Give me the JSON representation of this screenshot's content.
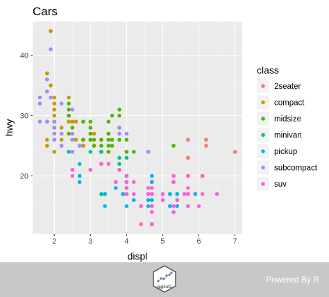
{
  "chart_data": {
    "type": "scatter",
    "title": "Cars",
    "xlabel": "displ",
    "ylabel": "hwy",
    "xlim": [
      1.4,
      7.2
    ],
    "ylim": [
      10.4,
      45.6
    ],
    "xticks": [
      2,
      3,
      4,
      5,
      6,
      7
    ],
    "yticks": [
      20,
      30,
      40
    ],
    "grid": true,
    "legend": {
      "title": "class",
      "position": "right"
    },
    "series": [
      {
        "name": "2seater",
        "color": "#F8766D",
        "points": [
          [
            5.7,
            26
          ],
          [
            5.7,
            23
          ],
          [
            6.2,
            26
          ],
          [
            6.2,
            25
          ],
          [
            7.0,
            24
          ]
        ]
      },
      {
        "name": "compact",
        "color": "#C49A00",
        "points": [
          [
            1.8,
            29
          ],
          [
            1.8,
            29
          ],
          [
            2.0,
            31
          ],
          [
            2.0,
            30
          ],
          [
            2.8,
            26
          ],
          [
            2.8,
            26
          ],
          [
            3.1,
            27
          ],
          [
            1.8,
            26
          ],
          [
            1.8,
            25
          ],
          [
            2.0,
            28
          ],
          [
            2.0,
            27
          ],
          [
            2.8,
            25
          ],
          [
            2.8,
            25
          ],
          [
            3.1,
            25
          ],
          [
            2.2,
            26
          ],
          [
            2.2,
            27
          ],
          [
            2.4,
            30
          ],
          [
            2.4,
            33
          ],
          [
            3.0,
            26
          ],
          [
            3.0,
            26
          ],
          [
            2.2,
            28
          ],
          [
            2.5,
            29
          ],
          [
            2.5,
            29
          ],
          [
            2.0,
            29
          ],
          [
            2.0,
            29
          ],
          [
            2.8,
            29
          ],
          [
            1.8,
            29
          ],
          [
            1.8,
            36
          ],
          [
            1.9,
            44
          ],
          [
            1.9,
            44
          ],
          [
            2.0,
            29
          ],
          [
            2.0,
            24
          ],
          [
            2.5,
            27
          ],
          [
            2.0,
            32
          ],
          [
            2.4,
            29
          ],
          [
            1.9,
            35
          ],
          [
            2.0,
            33
          ],
          [
            1.8,
            37
          ],
          [
            2.8,
            26
          ],
          [
            2.6,
            29
          ],
          [
            2.6,
            26
          ],
          [
            3.0,
            27
          ],
          [
            2.4,
            29
          ],
          [
            2.4,
            29
          ],
          [
            2.5,
            29
          ]
        ]
      },
      {
        "name": "midsize",
        "color": "#53B400",
        "points": [
          [
            2.4,
            27
          ],
          [
            2.4,
            30
          ],
          [
            3.1,
            26
          ],
          [
            3.5,
            29
          ],
          [
            3.6,
            26
          ],
          [
            2.4,
            31
          ],
          [
            3.0,
            26
          ],
          [
            3.3,
            26
          ],
          [
            3.3,
            26
          ],
          [
            3.8,
            26
          ],
          [
            3.8,
            30
          ],
          [
            5.3,
            25
          ],
          [
            2.5,
            28
          ],
          [
            2.5,
            27
          ],
          [
            3.5,
            27
          ],
          [
            3.5,
            26
          ],
          [
            3.0,
            29
          ],
          [
            3.0,
            27
          ],
          [
            3.5,
            24
          ],
          [
            3.3,
            24
          ],
          [
            3.3,
            25
          ],
          [
            4.0,
            26
          ],
          [
            2.5,
            26
          ],
          [
            3.5,
            25
          ],
          [
            2.4,
            32
          ],
          [
            3.5,
            27
          ],
          [
            4.0,
            24
          ],
          [
            3.5,
            24
          ],
          [
            4.6,
            24
          ],
          [
            2.4,
            30
          ],
          [
            2.8,
            26
          ],
          [
            3.1,
            25
          ],
          [
            2.8,
            29
          ],
          [
            3.6,
            25
          ],
          [
            3.8,
            28
          ],
          [
            3.6,
            30
          ],
          [
            3.3,
            24
          ],
          [
            3.0,
            28
          ],
          [
            3.8,
            31
          ],
          [
            4.2,
            24
          ]
        ]
      },
      {
        "name": "minivan",
        "color": "#00C094",
        "points": [
          [
            2.4,
            24
          ],
          [
            3.0,
            24
          ],
          [
            3.3,
            22
          ],
          [
            3.3,
            22
          ],
          [
            3.3,
            24
          ],
          [
            3.3,
            24
          ],
          [
            3.3,
            17
          ],
          [
            3.8,
            22
          ],
          [
            3.8,
            21
          ],
          [
            3.8,
            23
          ],
          [
            4.0,
            23
          ]
        ]
      },
      {
        "name": "pickup",
        "color": "#00B6EB",
        "points": [
          [
            3.7,
            19
          ],
          [
            3.7,
            18
          ],
          [
            3.9,
            17
          ],
          [
            3.9,
            17
          ],
          [
            4.7,
            19
          ],
          [
            4.7,
            19
          ],
          [
            4.7,
            12
          ],
          [
            5.2,
            17
          ],
          [
            5.2,
            15
          ],
          [
            5.7,
            17
          ],
          [
            5.9,
            17
          ],
          [
            4.7,
            17
          ],
          [
            4.7,
            17
          ],
          [
            4.7,
            19
          ],
          [
            4.7,
            12
          ],
          [
            4.7,
            17
          ],
          [
            4.7,
            16
          ],
          [
            4.7,
            17
          ],
          [
            5.2,
            17
          ],
          [
            5.2,
            15
          ],
          [
            5.7,
            15
          ],
          [
            5.9,
            17
          ],
          [
            4.6,
            16
          ],
          [
            5.4,
            17
          ],
          [
            5.4,
            17
          ],
          [
            4.0,
            20
          ],
          [
            4.0,
            19
          ],
          [
            4.0,
            20
          ],
          [
            4.0,
            17
          ],
          [
            4.7,
            20
          ],
          [
            4.7,
            16
          ],
          [
            4.7,
            15
          ],
          [
            2.7,
            20
          ],
          [
            2.7,
            19
          ],
          [
            3.4,
            17
          ],
          [
            3.4,
            17
          ],
          [
            4.0,
            20
          ],
          [
            4.0,
            15
          ],
          [
            2.7,
            22
          ],
          [
            2.7,
            20
          ],
          [
            3.4,
            15
          ],
          [
            3.4,
            17
          ],
          [
            4.6,
            15
          ],
          [
            4.2,
            16
          ],
          [
            5.4,
            15
          ]
        ]
      },
      {
        "name": "subcompact",
        "color": "#A58AFF",
        "points": [
          [
            3.8,
            27
          ],
          [
            3.8,
            28
          ],
          [
            4.0,
            27
          ],
          [
            4.6,
            24
          ],
          [
            4.6,
            24
          ],
          [
            1.6,
            33
          ],
          [
            1.6,
            32
          ],
          [
            1.6,
            32
          ],
          [
            1.6,
            29
          ],
          [
            1.6,
            32
          ],
          [
            1.8,
            34
          ],
          [
            1.8,
            36
          ],
          [
            1.8,
            36
          ],
          [
            2.0,
            29
          ],
          [
            2.0,
            26
          ],
          [
            1.9,
            41
          ],
          [
            2.0,
            29
          ],
          [
            2.5,
            27
          ],
          [
            2.5,
            31
          ],
          [
            2.2,
            32
          ],
          [
            2.2,
            27
          ],
          [
            2.5,
            26
          ],
          [
            2.5,
            26
          ],
          [
            2.2,
            25
          ],
          [
            2.2,
            25
          ],
          [
            2.0,
            28
          ],
          [
            2.0,
            27
          ],
          [
            2.7,
            25
          ],
          [
            1.8,
            34
          ],
          [
            1.8,
            29
          ],
          [
            1.9,
            33
          ],
          [
            2.0,
            26
          ],
          [
            2.5,
            24
          ],
          [
            2.5,
            26
          ],
          [
            2.0,
            28
          ],
          [
            2.5,
            24
          ],
          [
            2.7,
            25
          ]
        ]
      },
      {
        "name": "suv",
        "color": "#FB61D7",
        "points": [
          [
            5.7,
            20
          ],
          [
            5.7,
            15
          ],
          [
            6.1,
            20
          ],
          [
            5.3,
            14
          ],
          [
            5.3,
            15
          ],
          [
            5.3,
            20
          ],
          [
            5.7,
            17
          ],
          [
            6.5,
            17
          ],
          [
            5.3,
            19
          ],
          [
            5.3,
            19
          ],
          [
            5.7,
            20
          ],
          [
            6.0,
            15
          ],
          [
            4.2,
            17
          ],
          [
            4.4,
            12
          ],
          [
            5.7,
            17
          ],
          [
            5.3,
            19
          ],
          [
            5.3,
            19
          ],
          [
            3.7,
            19
          ],
          [
            4.7,
            15
          ],
          [
            4.7,
            18
          ],
          [
            4.7,
            12
          ],
          [
            5.7,
            18
          ],
          [
            6.1,
            17
          ],
          [
            4.0,
            17
          ],
          [
            4.0,
            19
          ],
          [
            4.6,
            18
          ],
          [
            5.0,
            17
          ],
          [
            3.5,
            22
          ],
          [
            3.0,
            21
          ],
          [
            3.3,
            22
          ],
          [
            3.8,
            21
          ],
          [
            4.0,
            18
          ],
          [
            4.6,
            17
          ],
          [
            4.2,
            17
          ],
          [
            4.4,
            15
          ],
          [
            4.6,
            17
          ],
          [
            5.4,
            16
          ],
          [
            5.4,
            16
          ],
          [
            5.6,
            17
          ],
          [
            2.5,
            21
          ],
          [
            4.0,
            19
          ],
          [
            4.7,
            14
          ],
          [
            5.7,
            17
          ],
          [
            3.3,
            22
          ],
          [
            4.0,
            20
          ],
          [
            5.0,
            16
          ],
          [
            4.2,
            19
          ],
          [
            4.0,
            17
          ],
          [
            2.5,
            20
          ],
          [
            4.7,
            17
          ],
          [
            4.7,
            17
          ],
          [
            5.7,
            17
          ],
          [
            6.1,
            20
          ],
          [
            4.0,
            18
          ],
          [
            4.7,
            17
          ],
          [
            4.4,
            15
          ],
          [
            5.3,
            15
          ],
          [
            5.3,
            20
          ]
        ]
      }
    ]
  },
  "footer": {
    "powered_by": "Powered By R",
    "logo_text": "ggplot2"
  }
}
